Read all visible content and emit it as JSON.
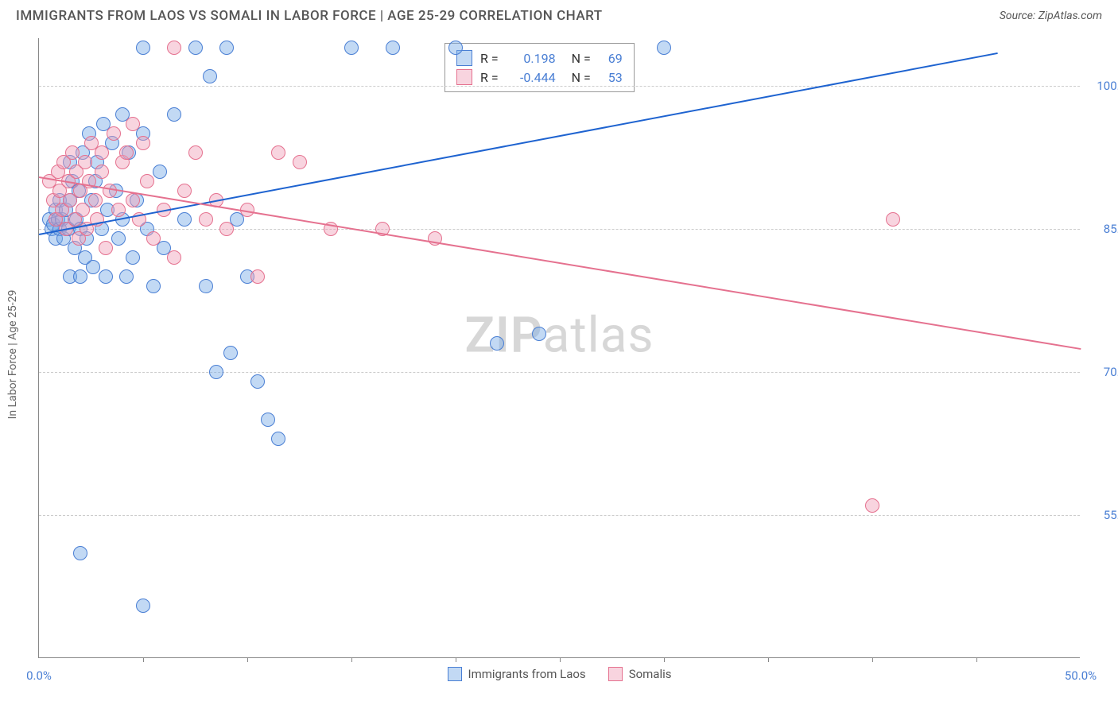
{
  "header": {
    "title": "IMMIGRANTS FROM LAOS VS SOMALI IN LABOR FORCE | AGE 25-29 CORRELATION CHART",
    "source": "Source: ZipAtlas.com"
  },
  "ylabel": "In Labor Force | Age 25-29",
  "watermark_a": "ZIP",
  "watermark_b": "atlas",
  "chart": {
    "type": "scatter",
    "background_color": "#ffffff",
    "grid_color": "#cccccc",
    "axis_color": "#888888",
    "text_color": "#4a7fd4",
    "xlim": [
      0,
      50
    ],
    "ylim": [
      40,
      105
    ],
    "yticks": [
      {
        "v": 55.0,
        "label": "55.0%"
      },
      {
        "v": 70.0,
        "label": "70.0%"
      },
      {
        "v": 85.0,
        "label": "85.0%"
      },
      {
        "v": 100.0,
        "label": "100.0%"
      }
    ],
    "xticks_marks": [
      5,
      10,
      15,
      20,
      25,
      30,
      35,
      40,
      45
    ],
    "xticks": [
      {
        "v": 0,
        "label": "0.0%"
      },
      {
        "v": 50,
        "label": "50.0%"
      }
    ],
    "marker_radius": 9,
    "marker_stroke_width": 1.5,
    "series": {
      "blue": {
        "label": "Immigrants from Laos",
        "fill": "rgba(120,170,230,0.45)",
        "stroke": "#4a7fd4",
        "r_value": "0.198",
        "n_value": "69",
        "trend": {
          "x1": 0,
          "y1": 84.5,
          "x2": 46,
          "y2": 103.5,
          "color": "#1e63d0",
          "width": 2
        },
        "points": [
          [
            0.5,
            86
          ],
          [
            0.6,
            85
          ],
          [
            0.7,
            85.5
          ],
          [
            0.8,
            87
          ],
          [
            0.8,
            84
          ],
          [
            0.9,
            86
          ],
          [
            1.0,
            85
          ],
          [
            1.0,
            88
          ],
          [
            1.1,
            86
          ],
          [
            1.2,
            84
          ],
          [
            1.3,
            87
          ],
          [
            1.4,
            85
          ],
          [
            1.5,
            92
          ],
          [
            1.5,
            88
          ],
          [
            1.6,
            90
          ],
          [
            1.7,
            83
          ],
          [
            1.8,
            86
          ],
          [
            1.9,
            89
          ],
          [
            2.0,
            85
          ],
          [
            2.1,
            93
          ],
          [
            2.2,
            82
          ],
          [
            2.3,
            84
          ],
          [
            2.4,
            95
          ],
          [
            2.5,
            88
          ],
          [
            2.6,
            81
          ],
          [
            2.7,
            90
          ],
          [
            2.8,
            92
          ],
          [
            3.0,
            85
          ],
          [
            3.1,
            96
          ],
          [
            3.2,
            80
          ],
          [
            3.3,
            87
          ],
          [
            3.5,
            94
          ],
          [
            3.7,
            89
          ],
          [
            3.8,
            84
          ],
          [
            4.0,
            97
          ],
          [
            4.0,
            86
          ],
          [
            4.2,
            80
          ],
          [
            4.3,
            93
          ],
          [
            4.5,
            82
          ],
          [
            4.7,
            88
          ],
          [
            5.0,
            104
          ],
          [
            5.0,
            95
          ],
          [
            5.2,
            85
          ],
          [
            5.5,
            79
          ],
          [
            5.8,
            91
          ],
          [
            6.0,
            83
          ],
          [
            6.5,
            97
          ],
          [
            7.0,
            86
          ],
          [
            7.5,
            104
          ],
          [
            8.0,
            79
          ],
          [
            8.2,
            101
          ],
          [
            8.5,
            70
          ],
          [
            9.0,
            104
          ],
          [
            9.2,
            72
          ],
          [
            9.5,
            86
          ],
          [
            10.0,
            80
          ],
          [
            10.5,
            69
          ],
          [
            11.0,
            65
          ],
          [
            11.5,
            63
          ],
          [
            15.0,
            104
          ],
          [
            17.0,
            104
          ],
          [
            20.0,
            104
          ],
          [
            22.0,
            73
          ],
          [
            24.0,
            74
          ],
          [
            30.0,
            104
          ],
          [
            2.0,
            51
          ],
          [
            5.0,
            45.5
          ],
          [
            1.5,
            80
          ],
          [
            2.0,
            80
          ]
        ]
      },
      "pink": {
        "label": "Somalis",
        "fill": "rgba(240,160,185,0.45)",
        "stroke": "#e5718f",
        "r_value": "-0.444",
        "n_value": "53",
        "trend": {
          "x1": 0,
          "y1": 90.5,
          "x2": 50,
          "y2": 72.5,
          "color": "#e5718f",
          "width": 2
        },
        "points": [
          [
            0.5,
            90
          ],
          [
            0.7,
            88
          ],
          [
            0.8,
            86
          ],
          [
            0.9,
            91
          ],
          [
            1.0,
            89
          ],
          [
            1.1,
            87
          ],
          [
            1.2,
            92
          ],
          [
            1.3,
            85
          ],
          [
            1.4,
            90
          ],
          [
            1.5,
            88
          ],
          [
            1.6,
            93
          ],
          [
            1.7,
            86
          ],
          [
            1.8,
            91
          ],
          [
            1.9,
            84
          ],
          [
            2.0,
            89
          ],
          [
            2.1,
            87
          ],
          [
            2.2,
            92
          ],
          [
            2.3,
            85
          ],
          [
            2.4,
            90
          ],
          [
            2.5,
            94
          ],
          [
            2.7,
            88
          ],
          [
            2.8,
            86
          ],
          [
            3.0,
            91
          ],
          [
            3.2,
            83
          ],
          [
            3.4,
            89
          ],
          [
            3.6,
            95
          ],
          [
            3.8,
            87
          ],
          [
            4.0,
            92
          ],
          [
            4.2,
            93
          ],
          [
            4.5,
            88
          ],
          [
            4.8,
            86
          ],
          [
            5.0,
            94
          ],
          [
            5.2,
            90
          ],
          [
            5.5,
            84
          ],
          [
            6.0,
            87
          ],
          [
            6.5,
            104
          ],
          [
            6.5,
            82
          ],
          [
            7.0,
            89
          ],
          [
            7.5,
            93
          ],
          [
            8.0,
            86
          ],
          [
            8.5,
            88
          ],
          [
            9.0,
            85
          ],
          [
            10.0,
            87
          ],
          [
            10.5,
            80
          ],
          [
            11.5,
            93
          ],
          [
            12.5,
            92
          ],
          [
            14.0,
            85
          ],
          [
            16.5,
            85
          ],
          [
            19.0,
            84
          ],
          [
            40.0,
            56
          ],
          [
            41.0,
            86
          ],
          [
            3.0,
            93
          ],
          [
            4.5,
            96
          ]
        ]
      }
    }
  },
  "legend_labels": {
    "r": "R =",
    "n": "N ="
  }
}
